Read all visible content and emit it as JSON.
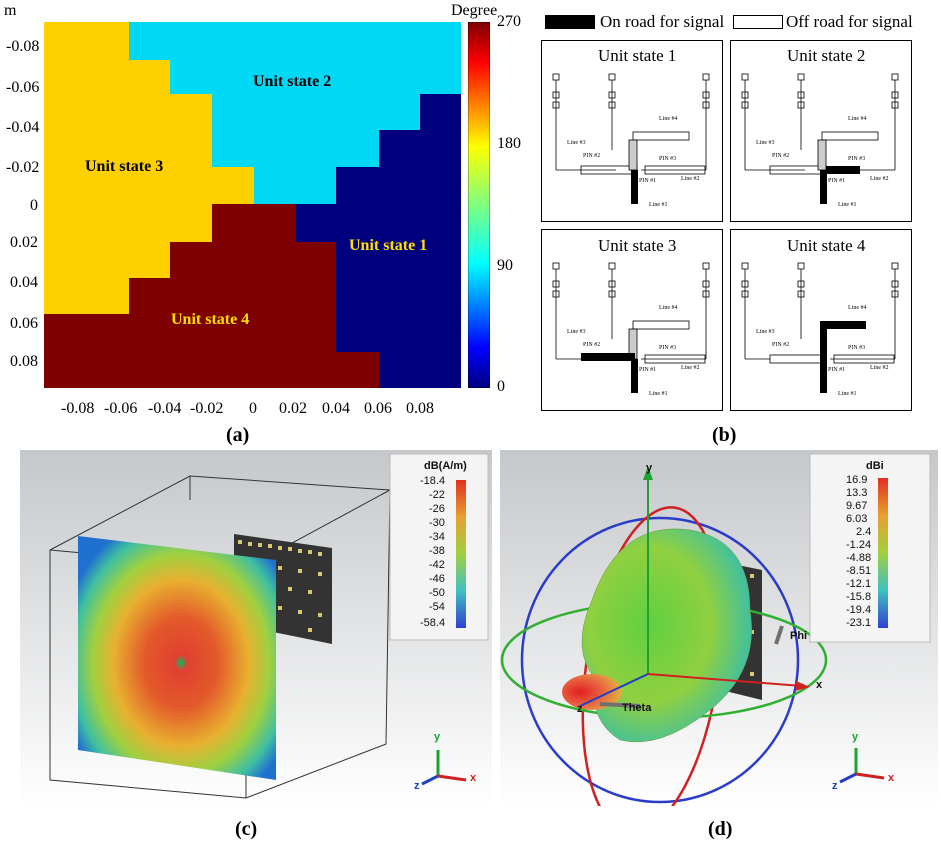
{
  "panel_a": {
    "axis_unit": "m",
    "y_ticks": [
      "-0.08",
      "-0.06",
      "-0.04",
      "-0.02",
      "0",
      "0.02",
      "0.04",
      "0.06",
      "0.08"
    ],
    "x_ticks": [
      "-0.08",
      "-0.06",
      "-0.04",
      "-0.02",
      "0",
      "0.02",
      "0.04",
      "0.06",
      "0.08"
    ],
    "colorbar_title": "Degree",
    "colorbar_ticks": [
      "270",
      "180",
      "90",
      "0"
    ],
    "region_labels": [
      "Unit state 2",
      "Unit state 3",
      "Unit state 1",
      "Unit state 4"
    ],
    "colors": {
      "state1": "#00007f",
      "state2": "#00d9f5",
      "state3": "#ffd000",
      "state4": "#7f0000",
      "label_dark": "#000000",
      "label_light": "#ffe000"
    },
    "caption": "(a)"
  },
  "panel_b": {
    "legend_on": "On road for signal",
    "legend_off": "Off road for signal",
    "units": [
      {
        "title": "Unit state 1"
      },
      {
        "title": "Unit state 2"
      },
      {
        "title": "Unit state 3"
      },
      {
        "title": "Unit state 4"
      }
    ],
    "labels": {
      "line1": "Line #1",
      "line2": "Line #2",
      "line3": "Line #3",
      "line4": "Line #4",
      "pin1": "PIN #1",
      "pin2": "PIN #2",
      "pin3": "PIN #3"
    },
    "caption": "(b)"
  },
  "panel_c": {
    "colorbar_title": "dB(A/m)",
    "colorbar_ticks": [
      "-18.4",
      "-22",
      "-26",
      "-30",
      "-34",
      "-38",
      "-42",
      "-46",
      "-50",
      "-54",
      "-58.4"
    ],
    "axis_labels": {
      "y": "y",
      "x": "x",
      "z": "z"
    },
    "caption": "(c)"
  },
  "panel_d": {
    "colorbar_title": "dBi",
    "colorbar_ticks": [
      "16.9",
      "13.3",
      "9.67",
      "6.03",
      "2.4",
      "-1.24",
      "-4.88",
      "-8.51",
      "-12.1",
      "-15.8",
      "-19.4",
      "-23.1"
    ],
    "axis_labels": {
      "y": "y",
      "x": "x",
      "z": "z",
      "phi": "Phi",
      "theta": "Theta"
    },
    "caption": "(d)"
  }
}
